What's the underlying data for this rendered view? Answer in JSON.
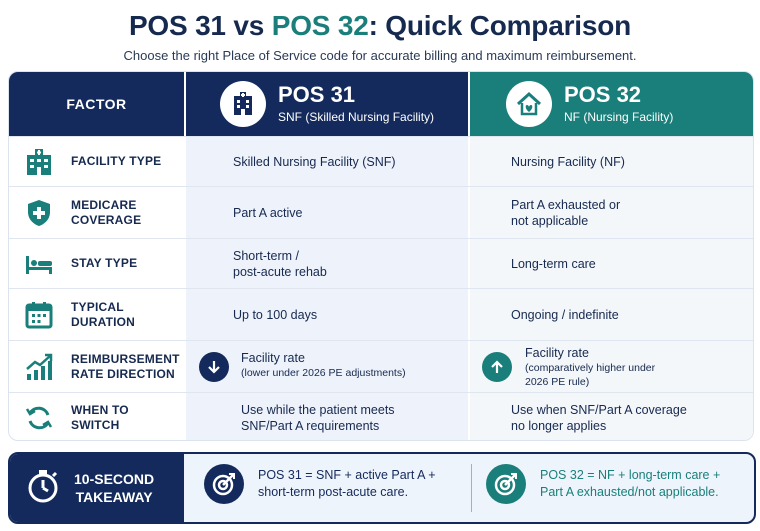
{
  "title": {
    "part1": "POS 31",
    "vs": " vs ",
    "part2": "POS 32",
    "rest": ": Quick Comparison"
  },
  "subtitle": "Choose the right Place of Service code for accurate billing and maximum reimbursement.",
  "header": {
    "factor": "FACTOR",
    "pos31": {
      "code": "POS 31",
      "desc": "SNF (Skilled Nursing Facility)",
      "icon": "hospital-icon"
    },
    "pos32": {
      "code": "POS 32",
      "desc": "NF (Nursing Facility)",
      "icon": "house-icon"
    }
  },
  "rows": [
    {
      "factor_l1": "FACILITY TYPE",
      "factor_l2": "",
      "icon": "building-icon",
      "pos31": "Skilled Nursing Facility (SNF)",
      "pos32": "Nursing Facility (NF)"
    },
    {
      "factor_l1": "MEDICARE",
      "factor_l2": "COVERAGE",
      "icon": "shield-plus-icon",
      "pos31": "Part A active",
      "pos32_l1": "Part A exhausted or",
      "pos32_l2": "not applicable"
    },
    {
      "factor_l1": "STAY TYPE",
      "factor_l2": "",
      "icon": "bed-icon",
      "pos31_l1": "Short-term /",
      "pos31_l2": "post-acute rehab",
      "pos32": "Long-term care"
    },
    {
      "factor_l1": "TYPICAL",
      "factor_l2": "DURATION",
      "icon": "calendar-icon",
      "pos31": "Up to 100 days",
      "pos32": "Ongoing / indefinite"
    },
    {
      "factor_l1": "REIMBURSEMENT",
      "factor_l2": "RATE DIRECTION",
      "icon": "trend-chart-icon",
      "pos31_title": "Facility rate",
      "pos31_note": "(lower under 2026 PE adjustments)",
      "pos32_title": "Facility rate",
      "pos32_note_l1": "(comparatively higher under",
      "pos32_note_l2": "2026 PE rule)"
    },
    {
      "factor_l1": "WHEN TO",
      "factor_l2": "SWITCH",
      "icon": "refresh-icon",
      "pos31_l1": "Use while the patient meets",
      "pos31_l2": "SNF/Part A requirements",
      "pos32_l1": "Use when SNF/Part A coverage",
      "pos32_l2": "no longer applies"
    }
  ],
  "takeaway": {
    "label_l1": "10-SECOND",
    "label_l2": "TAKEAWAY",
    "pos31_l1": "POS 31 = SNF + active Part A +",
    "pos31_l2": "short-term post-acute care.",
    "pos32_l1": "POS 32 = NF + long-term care +",
    "pos32_l2": "Part A exhausted/not applicable."
  },
  "colors": {
    "navy": "#142a5c",
    "teal": "#1a7f7a",
    "light31": "#eef3fb",
    "light32": "#f4f7fa"
  }
}
